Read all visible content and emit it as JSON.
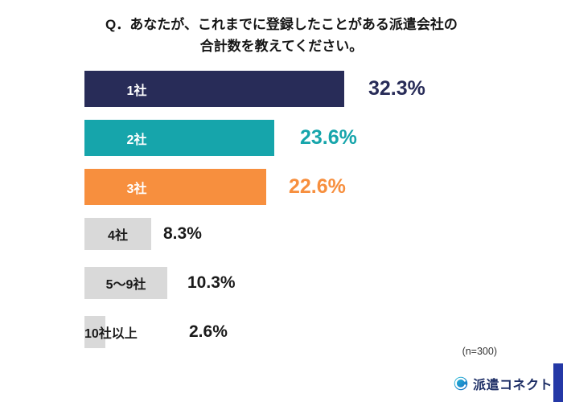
{
  "chart_data": {
    "type": "bar",
    "orientation": "horizontal",
    "title": "Q．あなたが、これまでに登録したことがある派遣会社の合計数を教えてください。",
    "title_line1": "Q．あなたが、これまでに登録したことがある派遣会社の",
    "title_line2": "合計数を教えてください。",
    "categories": [
      "1社",
      "2社",
      "3社",
      "4社",
      "5〜9社",
      "10社以上"
    ],
    "values": [
      32.3,
      23.6,
      22.6,
      8.3,
      10.3,
      2.6
    ],
    "unit": "%",
    "xlim": [
      0,
      35
    ],
    "grid": false,
    "legend": false,
    "n_label": "(n=300)",
    "rows": [
      {
        "label": "1社",
        "value": 32.3,
        "value_label": "32.3%",
        "bar_color": "#282c58",
        "label_color": "#ffffff",
        "pct_color": "#282c58",
        "emphasis": true
      },
      {
        "label": "2社",
        "value": 23.6,
        "value_label": "23.6%",
        "bar_color": "#16a5ab",
        "label_color": "#ffffff",
        "pct_color": "#16a5ab",
        "emphasis": true
      },
      {
        "label": "3社",
        "value": 22.6,
        "value_label": "22.6%",
        "bar_color": "#f78f3e",
        "label_color": "#ffffff",
        "pct_color": "#f78f3e",
        "emphasis": true
      },
      {
        "label": "4社",
        "value": 8.3,
        "value_label": "8.3%",
        "bar_color": "#d9d9d9",
        "label_color": "#1a1a1a",
        "pct_color": "#1a1a1a",
        "emphasis": false
      },
      {
        "label": "5〜9社",
        "value": 10.3,
        "value_label": "10.3%",
        "bar_color": "#d9d9d9",
        "label_color": "#1a1a1a",
        "pct_color": "#1a1a1a",
        "emphasis": false
      },
      {
        "label": "10社以上",
        "value": 2.6,
        "value_label": "2.6%",
        "bar_color": "#d9d9d9",
        "label_color": "#1a1a1a",
        "pct_color": "#1a1a1a",
        "emphasis": false
      }
    ]
  },
  "footer": {
    "logo_text": "派遣コネクト"
  },
  "colors": {
    "accent_navy": "#282c58",
    "accent_teal": "#16a5ab",
    "accent_orange": "#f78f3e",
    "bar_gray": "#d9d9d9",
    "stripe_blue": "#2438a6",
    "logo_navy": "#1e2f66",
    "logo_icon_teal": "#27c2d8",
    "logo_icon_blue": "#1766c2"
  }
}
